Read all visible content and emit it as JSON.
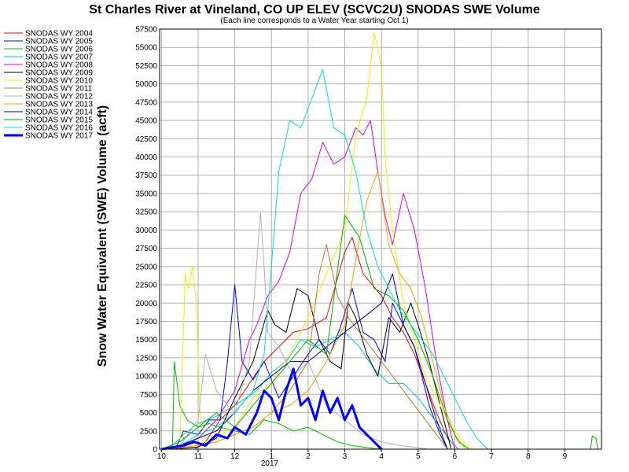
{
  "chart_data": {
    "type": "line",
    "title": "St Charles River at Vineland, CO UP ELEV (SCVC2U) SNODAS SWE Volume",
    "subtitle": "(Each line corresponds to a Water Year starting Oct 1)",
    "xlabel": "",
    "ylabel": "Snow Water Equivalent (SWE) Volume (acft)",
    "x_axis_year_label": "2017",
    "xlim": [
      -0.05,
      12.0
    ],
    "ylim": [
      0,
      57500
    ],
    "y_ticks": [
      0,
      2500,
      5000,
      7500,
      10000,
      12500,
      15000,
      17500,
      20000,
      22500,
      25000,
      27500,
      30000,
      32500,
      35000,
      37500,
      40000,
      42500,
      45000,
      47500,
      50000,
      52500,
      55000,
      57500
    ],
    "x_ticks": [
      {
        "label": "10",
        "value": 0
      },
      {
        "label": "11",
        "value": 1
      },
      {
        "label": "12",
        "value": 2
      },
      {
        "label": "1",
        "value": 3
      },
      {
        "label": "2",
        "value": 4
      },
      {
        "label": "3",
        "value": 5
      },
      {
        "label": "4",
        "value": 6
      },
      {
        "label": "5",
        "value": 7
      },
      {
        "label": "6",
        "value": 8
      },
      {
        "label": "7",
        "value": 9
      },
      {
        "label": "8",
        "value": 10
      },
      {
        "label": "9",
        "value": 11
      }
    ],
    "grid": true,
    "legend_position": "top-left, outside plot",
    "series": [
      {
        "name": "SNODAS WY 2004",
        "color": "#ff0000",
        "width": 1,
        "x": [
          0,
          0.9,
          1.2,
          1.6,
          2.0,
          2.4,
          2.8,
          3.2,
          3.6,
          4.0,
          4.5,
          5.0,
          5.2,
          5.5,
          6.0,
          6.3,
          6.6,
          6.9,
          7.2,
          7.5,
          7.8,
          8.1
        ],
        "y": [
          0,
          0,
          1000,
          4000,
          6000,
          9000,
          12000,
          14000,
          16000,
          16500,
          18000,
          27000,
          29000,
          24000,
          21000,
          18000,
          16000,
          13000,
          9000,
          5000,
          1500,
          0
        ]
      },
      {
        "name": "SNODAS WY 2005",
        "color": "#0000ff",
        "width": 1,
        "x": [
          0,
          0.4,
          0.6,
          1.0,
          1.3,
          1.6,
          1.8,
          2.0,
          2.2,
          2.5,
          2.8,
          3.2,
          3.6,
          4.0,
          4.3,
          4.6,
          4.9,
          5.2,
          5.5,
          5.8,
          6.1,
          6.3,
          6.6,
          6.9,
          7.1,
          7.3,
          7.6,
          7.8
        ],
        "y": [
          0,
          200,
          2500,
          2000,
          4000,
          4000,
          12000,
          22500,
          12000,
          9500,
          12000,
          7000,
          10000,
          13000,
          15000,
          13000,
          17000,
          22000,
          16000,
          15000,
          12000,
          20000,
          17000,
          14000,
          10000,
          6000,
          2000,
          0
        ]
      },
      {
        "name": "SNODAS WY 2006",
        "color": "#00c000",
        "width": 1,
        "x": [
          0,
          0.3,
          0.35,
          0.5,
          0.7,
          1.0,
          1.3,
          1.6,
          2.0,
          2.4,
          2.8,
          3.2,
          3.6,
          4.0,
          4.4,
          4.8,
          5.2,
          5.5,
          5.8,
          6.1
        ],
        "y": [
          0,
          100,
          12000,
          6000,
          4000,
          3000,
          3500,
          3000,
          2500,
          2000,
          4000,
          3500,
          2500,
          3000,
          2000,
          1000,
          500,
          300,
          100,
          0
        ]
      },
      {
        "name": "SNODAS WY 2007",
        "color": "#00c8c8",
        "width": 1,
        "x": [
          0,
          0.3,
          0.6,
          1.0,
          1.5,
          2.0,
          2.6,
          3.0,
          3.4,
          3.8,
          4.2,
          4.6,
          5.0,
          5.4,
          5.8,
          6.2,
          6.6,
          7.0,
          7.3,
          7.6,
          7.9,
          8.1
        ],
        "y": [
          0,
          500,
          2000,
          3500,
          4500,
          6000,
          8000,
          10500,
          12000,
          15000,
          14000,
          15000,
          16000,
          14000,
          11000,
          9000,
          9000,
          7000,
          5000,
          3000,
          1000,
          0
        ]
      },
      {
        "name": "SNODAS WY 2008",
        "color": "#e000e0",
        "width": 1,
        "x": [
          0,
          0.5,
          1.0,
          1.5,
          2.0,
          2.4,
          2.6,
          2.9,
          3.2,
          3.5,
          3.8,
          4.1,
          4.4,
          4.7,
          5.0,
          5.3,
          5.5,
          5.7,
          5.9,
          6.1,
          6.3,
          6.6,
          6.9,
          7.2,
          7.5,
          7.8,
          8.0
        ],
        "y": [
          0,
          500,
          1500,
          4000,
          8000,
          15000,
          17000,
          21000,
          23000,
          27000,
          35000,
          37000,
          42000,
          39000,
          40000,
          44000,
          43000,
          45000,
          38000,
          32000,
          28000,
          35000,
          30000,
          22000,
          12000,
          4000,
          0
        ]
      },
      {
        "name": "SNODAS WY 2009",
        "color": "#000000",
        "width": 1,
        "x": [
          0,
          0.5,
          1.0,
          1.5,
          2.0,
          2.5,
          2.9,
          3.1,
          3.4,
          3.7,
          4.0,
          4.3,
          4.6,
          4.9,
          5.1,
          5.3,
          5.6,
          5.9,
          6.2,
          6.5,
          6.8,
          7.0,
          7.3,
          7.6,
          7.9
        ],
        "y": [
          0,
          100,
          300,
          1500,
          7000,
          12000,
          19000,
          17000,
          16000,
          22000,
          21000,
          15000,
          12000,
          11000,
          20000,
          18000,
          13000,
          10000,
          18000,
          16000,
          20000,
          17000,
          12000,
          6000,
          0
        ]
      },
      {
        "name": "SNODAS WY 2010",
        "color": "#f0f000",
        "width": 1,
        "x": [
          0,
          0.5,
          0.65,
          0.75,
          0.85,
          0.95,
          1.05,
          1.2,
          1.6,
          2.0,
          2.5,
          3.0,
          3.5,
          4.0,
          4.5,
          5.0,
          5.3,
          5.6,
          5.8,
          5.9,
          6.0,
          6.1,
          6.3,
          6.6,
          6.9,
          7.2,
          7.5,
          7.8,
          8.2,
          8.5
        ],
        "y": [
          0,
          200,
          24000,
          22000,
          25000,
          20000,
          5000,
          1000,
          2000,
          3000,
          7000,
          9000,
          13000,
          18000,
          24000,
          30000,
          43000,
          48000,
          57000,
          55000,
          52000,
          40000,
          30000,
          20000,
          15000,
          10000,
          7000,
          4000,
          1000,
          0
        ]
      },
      {
        "name": "SNODAS WY 2011",
        "color": "#b87838",
        "width": 1,
        "x": [
          0,
          0.5,
          1.0,
          1.5,
          2.0,
          2.5,
          3.0,
          3.5,
          4.0,
          4.3,
          4.5,
          4.8,
          5.1,
          5.4,
          5.7,
          6.0,
          6.3,
          6.6,
          6.9,
          7.2,
          7.5,
          7.8
        ],
        "y": [
          0,
          200,
          500,
          1000,
          2000,
          3000,
          5000,
          8000,
          12000,
          24000,
          28000,
          21000,
          18000,
          16000,
          14000,
          12000,
          10000,
          8000,
          6000,
          4000,
          2000,
          0
        ]
      },
      {
        "name": "SNODAS WY 2012",
        "color": "#b0b0b0",
        "width": 1,
        "x": [
          0,
          0.5,
          1.0,
          1.2,
          1.5,
          1.8,
          2.0,
          2.4,
          2.7,
          2.8,
          2.9,
          3.2,
          3.6,
          4.0,
          4.5,
          5.0,
          5.5,
          6.0,
          6.5,
          7.0,
          7.3
        ],
        "y": [
          0,
          500,
          4000,
          13000,
          8000,
          6000,
          5000,
          12000,
          32500,
          25000,
          16000,
          14000,
          10000,
          12000,
          6000,
          4000,
          2000,
          1000,
          500,
          200,
          0
        ]
      },
      {
        "name": "SNODAS WY 2013",
        "color": "#ffa000",
        "width": 1,
        "x": [
          0,
          0.5,
          1.0,
          1.5,
          2.0,
          2.5,
          3.0,
          3.5,
          4.0,
          4.5,
          5.0,
          5.3,
          5.6,
          5.9,
          6.2,
          6.5,
          6.8,
          7.1,
          7.4,
          7.7,
          8.0,
          8.3
        ],
        "y": [
          0,
          200,
          500,
          1000,
          2000,
          3000,
          5000,
          6000,
          8000,
          12000,
          17000,
          26000,
          34000,
          38000,
          28000,
          24000,
          22000,
          18000,
          12000,
          6000,
          2000,
          0
        ]
      },
      {
        "name": "SNODAS WY 2014",
        "color": "#000080",
        "width": 1,
        "x": [
          0,
          0.5,
          1.0,
          1.5,
          2.0,
          2.5,
          3.0,
          3.5,
          4.0,
          4.5,
          5.0,
          5.5,
          6.0,
          6.3,
          6.6,
          6.9,
          7.2,
          7.5,
          7.8
        ],
        "y": [
          0,
          500,
          1500,
          2500,
          5000,
          8000,
          10000,
          12000,
          12000,
          14000,
          16000,
          18000,
          20000,
          24000,
          17000,
          14000,
          9000,
          4000,
          0
        ]
      },
      {
        "name": "SNODAS WY 2015",
        "color": "#00b000",
        "width": 1,
        "x": [
          0,
          0.5,
          1.0,
          1.5,
          2.0,
          2.5,
          3.0,
          3.5,
          4.0,
          4.5,
          5.0,
          5.4,
          5.8,
          6.2,
          6.6,
          7.0,
          7.4,
          7.8,
          8.1,
          8.4,
          11.7,
          11.75,
          11.85,
          11.9
        ],
        "y": [
          0,
          1000,
          3000,
          5000,
          3000,
          6000,
          9000,
          12000,
          15000,
          13000,
          32000,
          29000,
          22000,
          21000,
          19000,
          15000,
          10000,
          4000,
          1000,
          0,
          0,
          1800,
          1500,
          0
        ]
      },
      {
        "name": "SNODAS WY 2016",
        "color": "#00e0e0",
        "width": 1,
        "x": [
          0,
          0.5,
          1.0,
          1.5,
          2.0,
          2.5,
          2.8,
          3.0,
          3.2,
          3.5,
          3.8,
          4.1,
          4.4,
          4.7,
          5.0,
          5.3,
          5.6,
          5.9,
          6.2,
          6.5,
          6.8,
          7.1,
          7.4,
          7.7,
          8.0,
          8.3,
          8.6,
          8.9
        ],
        "y": [
          0,
          500,
          2000,
          3000,
          5000,
          8000,
          13000,
          25000,
          38000,
          45000,
          44000,
          48000,
          52000,
          44000,
          43000,
          38000,
          30000,
          25000,
          22000,
          19000,
          17000,
          15000,
          13000,
          10000,
          7000,
          4000,
          1500,
          0
        ]
      },
      {
        "name": "SNODAS WY 2017",
        "color": "#0000ff",
        "width": 3,
        "x": [
          0,
          0.6,
          0.9,
          1.2,
          1.5,
          1.8,
          2.0,
          2.3,
          2.6,
          2.8,
          3.0,
          3.2,
          3.4,
          3.6,
          3.8,
          4.0,
          4.2,
          4.4,
          4.6,
          4.8,
          5.0,
          5.2,
          5.4,
          5.6,
          5.8,
          6.0
        ],
        "y": [
          0,
          500,
          1000,
          500,
          2000,
          1500,
          3000,
          2000,
          5000,
          8000,
          7000,
          4000,
          8000,
          11000,
          6000,
          7000,
          4000,
          8000,
          5000,
          7000,
          4000,
          6000,
          3000,
          2000,
          1000,
          0
        ]
      }
    ]
  }
}
